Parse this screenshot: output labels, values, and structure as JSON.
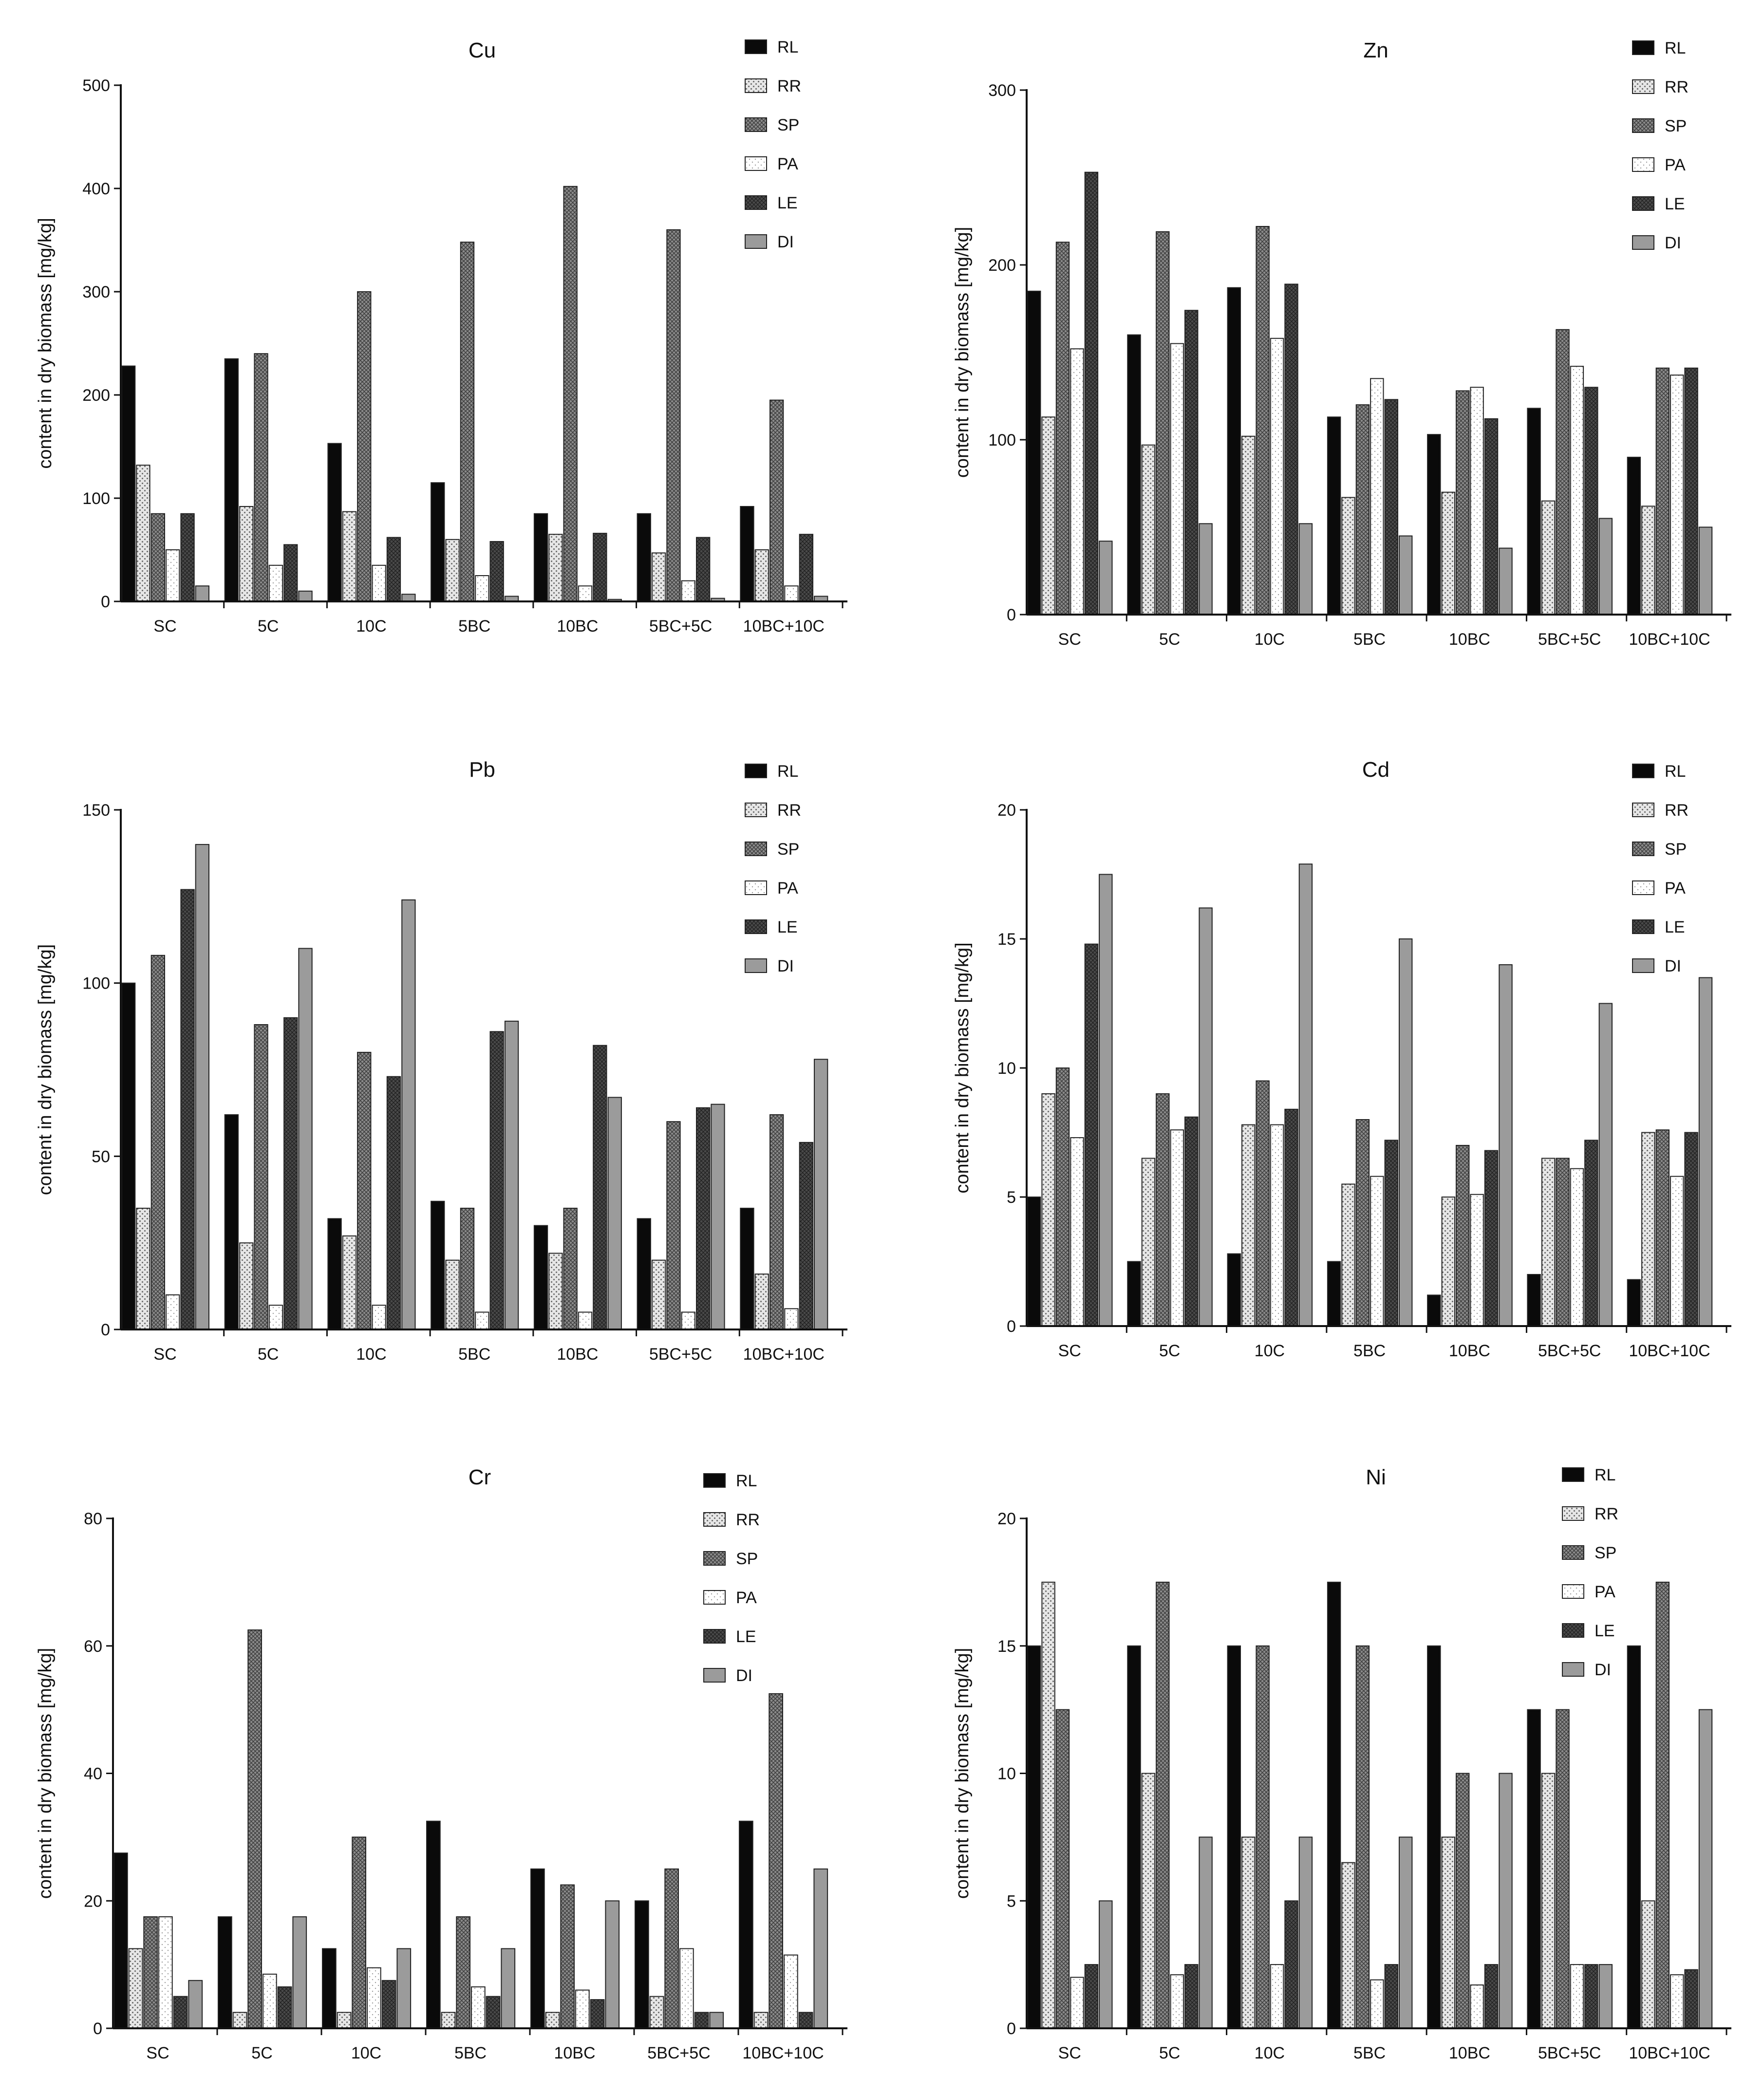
{
  "chart_data": [
    {
      "type": "bar",
      "title": "Cu",
      "ylabel": "content in dry biomass [mg/kg]",
      "ylim": [
        0,
        500
      ],
      "yticks": [
        0,
        100,
        200,
        300,
        400,
        500
      ],
      "legend": "right",
      "categories": [
        "SC",
        "5C",
        "10C",
        "5BC",
        "10BC",
        "5BC+5C",
        "10BC+10C"
      ],
      "series": [
        {
          "name": "RL",
          "values": [
            228,
            235,
            153,
            115,
            85,
            85,
            92
          ]
        },
        {
          "name": "RR",
          "values": [
            132,
            92,
            87,
            60,
            65,
            47,
            50
          ]
        },
        {
          "name": "SP",
          "values": [
            85,
            240,
            300,
            348,
            402,
            360,
            195
          ]
        },
        {
          "name": "PA",
          "values": [
            50,
            35,
            35,
            25,
            15,
            20,
            15
          ]
        },
        {
          "name": "LE",
          "values": [
            85,
            55,
            62,
            58,
            66,
            62,
            65
          ]
        },
        {
          "name": "DI",
          "values": [
            15,
            10,
            7,
            5,
            2,
            3,
            5
          ]
        }
      ]
    },
    {
      "type": "bar",
      "title": "Zn",
      "ylabel": "content in dry biomass [mg/kg]",
      "ylim": [
        0,
        300
      ],
      "yticks": [
        0,
        100,
        200,
        300
      ],
      "legend": "right",
      "categories": [
        "SC",
        "5C",
        "10C",
        "5BC",
        "10BC",
        "5BC+5C",
        "10BC+10C"
      ],
      "series": [
        {
          "name": "RL",
          "values": [
            185,
            160,
            187,
            113,
            103,
            118,
            90
          ]
        },
        {
          "name": "RR",
          "values": [
            113,
            97,
            102,
            67,
            70,
            65,
            62
          ]
        },
        {
          "name": "SP",
          "values": [
            213,
            219,
            222,
            120,
            128,
            163,
            141
          ]
        },
        {
          "name": "PA",
          "values": [
            152,
            155,
            158,
            135,
            130,
            142,
            137
          ]
        },
        {
          "name": "LE",
          "values": [
            253,
            174,
            189,
            123,
            112,
            130,
            141
          ]
        },
        {
          "name": "DI",
          "values": [
            42,
            52,
            52,
            45,
            38,
            55,
            50
          ]
        }
      ]
    },
    {
      "type": "bar",
      "title": "Pb",
      "ylabel": "content in dry biomass [mg/kg]",
      "ylim": [
        0,
        150
      ],
      "yticks": [
        0,
        50,
        100,
        150
      ],
      "legend": "right",
      "categories": [
        "SC",
        "5C",
        "10C",
        "5BC",
        "10BC",
        "5BC+5C",
        "10BC+10C"
      ],
      "series": [
        {
          "name": "RL",
          "values": [
            100,
            62,
            32,
            37,
            30,
            32,
            35
          ]
        },
        {
          "name": "RR",
          "values": [
            35,
            25,
            27,
            20,
            22,
            20,
            16
          ]
        },
        {
          "name": "SP",
          "values": [
            108,
            88,
            80,
            35,
            35,
            60,
            62
          ]
        },
        {
          "name": "PA",
          "values": [
            10,
            7,
            7,
            5,
            5,
            5,
            6
          ]
        },
        {
          "name": "LE",
          "values": [
            127,
            90,
            73,
            86,
            82,
            64,
            54
          ]
        },
        {
          "name": "DI",
          "values": [
            140,
            110,
            124,
            89,
            67,
            65,
            78
          ]
        }
      ]
    },
    {
      "type": "bar",
      "title": "Cd",
      "ylabel": "content in dry biomass [mg/kg]",
      "ylim": [
        0,
        20
      ],
      "yticks": [
        0,
        5,
        10,
        15,
        20
      ],
      "legend": "right",
      "categories": [
        "SC",
        "5C",
        "10C",
        "5BC",
        "10BC",
        "5BC+5C",
        "10BC+10C"
      ],
      "series": [
        {
          "name": "RL",
          "values": [
            5.0,
            2.5,
            2.8,
            2.5,
            1.2,
            2.0,
            1.8
          ]
        },
        {
          "name": "RR",
          "values": [
            9.0,
            6.5,
            7.8,
            5.5,
            5.0,
            6.5,
            7.5
          ]
        },
        {
          "name": "SP",
          "values": [
            10.0,
            9.0,
            9.5,
            8.0,
            7.0,
            6.5,
            7.6
          ]
        },
        {
          "name": "PA",
          "values": [
            7.3,
            7.6,
            7.8,
            5.8,
            5.1,
            6.1,
            5.8
          ]
        },
        {
          "name": "LE",
          "values": [
            14.8,
            8.1,
            8.4,
            7.2,
            6.8,
            7.2,
            7.5
          ]
        },
        {
          "name": "DI",
          "values": [
            17.5,
            16.2,
            17.9,
            15.0,
            14.0,
            12.5,
            13.5
          ]
        }
      ]
    },
    {
      "type": "bar",
      "title": "Cr",
      "ylabel": "content in dry biomass [mg/kg]",
      "ylim": [
        0,
        80
      ],
      "yticks": [
        0,
        20,
        40,
        60,
        80
      ],
      "legend": "right",
      "categories": [
        "SC",
        "5C",
        "10C",
        "5BC",
        "10BC",
        "5BC+5C",
        "10BC+10C"
      ],
      "series": [
        {
          "name": "RL",
          "values": [
            27.5,
            17.5,
            12.5,
            32.5,
            25,
            20,
            32.5
          ]
        },
        {
          "name": "RR",
          "values": [
            12.5,
            2.5,
            2.5,
            2.5,
            2.5,
            5,
            2.5
          ]
        },
        {
          "name": "SP",
          "values": [
            17.5,
            62.5,
            30,
            17.5,
            22.5,
            25,
            52.5
          ]
        },
        {
          "name": "PA",
          "values": [
            17.5,
            8.5,
            9.5,
            6.5,
            6,
            12.5,
            11.5
          ]
        },
        {
          "name": "LE",
          "values": [
            5,
            6.5,
            7.5,
            5,
            4.5,
            2.5,
            2.5
          ]
        },
        {
          "name": "DI",
          "values": [
            7.5,
            17.5,
            12.5,
            12.5,
            20,
            2.5,
            25
          ]
        }
      ]
    },
    {
      "type": "bar",
      "title": "Ni",
      "ylabel": "content in dry biomass [mg/kg]",
      "ylim": [
        0,
        20
      ],
      "yticks": [
        0,
        5,
        10,
        15,
        20
      ],
      "legend": "right",
      "categories": [
        "SC",
        "5C",
        "10C",
        "5BC",
        "10BC",
        "5BC+5C",
        "10BC+10C"
      ],
      "series": [
        {
          "name": "RL",
          "values": [
            15,
            15,
            15,
            17.5,
            15,
            12.5,
            15
          ]
        },
        {
          "name": "RR",
          "values": [
            17.5,
            10,
            7.5,
            6.5,
            7.5,
            10,
            5
          ]
        },
        {
          "name": "SP",
          "values": [
            12.5,
            17.5,
            15,
            15,
            10,
            12.5,
            17.5
          ]
        },
        {
          "name": "PA",
          "values": [
            2,
            2.1,
            2.5,
            1.9,
            1.7,
            2.5,
            2.1
          ]
        },
        {
          "name": "LE",
          "values": [
            2.5,
            2.5,
            5,
            2.5,
            2.5,
            2.5,
            2.3
          ]
        },
        {
          "name": "DI",
          "values": [
            5,
            7.5,
            7.5,
            7.5,
            10,
            2.5,
            12.5
          ]
        }
      ]
    }
  ]
}
